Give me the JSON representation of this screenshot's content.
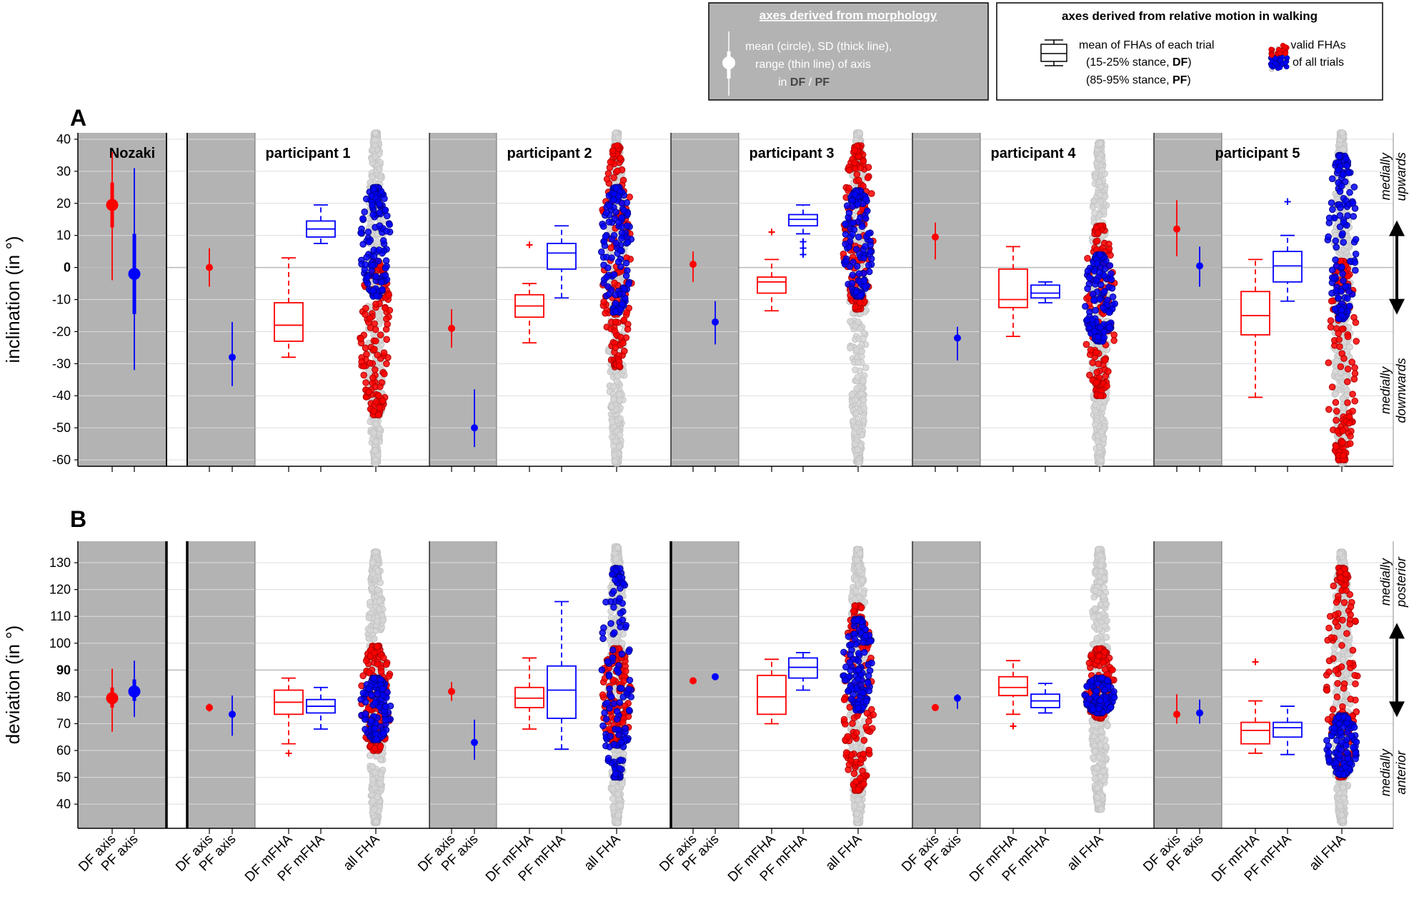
{
  "figure": {
    "colors": {
      "df": "#ff0000",
      "pf": "#0000ff",
      "gray_band": "#b3b3b3",
      "cloud": "#d6d6d6",
      "cloud_edge": "#c4c4c4"
    },
    "legend": {
      "morph_title": "axes derived from morphology",
      "morph_lines": [
        "mean (circle), SD (thick line),",
        "range (thin line) of axis"
      ],
      "morph_in": "in",
      "morph_df": "DF",
      "morph_slash": "/",
      "morph_pf": "PF",
      "motion_title": "axes derived from relative motion in walking",
      "motion_line1": "mean of FHAs of each trial",
      "motion_line2_pre": "(15-25% stance,",
      "motion_line2_bold": "DF",
      "motion_line3_pre": "(85-95% stance,",
      "motion_line3_bold": "PF",
      "close_paren": ")",
      "valid_line1": "valid FHAs",
      "valid_line2": "of all trials"
    },
    "x_tick_labels": [
      "DF axis",
      "PF axis",
      "DF axis",
      "PF axis",
      "DF mFHA",
      "PF mFHA",
      "all FHA",
      "DF axis",
      "PF axis",
      "DF mFHA",
      "PF mFHA",
      "all FHA",
      "DF axis",
      "PF axis",
      "DF mFHA",
      "PF mFHA",
      "all FHA",
      "DF axis",
      "PF axis",
      "DF mFHA",
      "PF mFHA",
      "all FHA",
      "DF axis",
      "PF axis",
      "DF mFHA",
      "PF mFHA",
      "all FHA"
    ]
  },
  "chart_data": [
    {
      "panel": "A",
      "type": "box-and-scatter",
      "ylabel": "inclination (in °)",
      "ylim": [
        -62,
        42
      ],
      "yticks": [
        -60,
        -50,
        -40,
        -30,
        -20,
        -10,
        0,
        10,
        20,
        30,
        40
      ],
      "annotation_top": [
        "medially",
        "upwards"
      ],
      "annotation_bottom": [
        "medially",
        "downwards"
      ],
      "groups": [
        {
          "name": "Nozaki",
          "axes": [
            {
              "label": "DF axis",
              "mean": 19.5,
              "sd": [
                12.5,
                26.5
              ],
              "range": [
                -4,
                36
              ]
            },
            {
              "label": "PF axis",
              "mean": -2,
              "sd": [
                -14.5,
                10.5
              ],
              "range": [
                -32,
                31
              ]
            }
          ]
        },
        {
          "name": "participant 1",
          "axes": [
            {
              "label": "DF axis",
              "mean": 0,
              "range": [
                -6,
                6
              ]
            },
            {
              "label": "PF axis",
              "mean": -28,
              "range": [
                -37,
                -17
              ]
            }
          ],
          "df_mfha": {
            "whisker": [
              -28,
              3
            ],
            "q1": -23,
            "median": -18,
            "q3": -11,
            "outliers": []
          },
          "pf_mfha": {
            "whisker": [
              7.5,
              19.5
            ],
            "q1": 9.5,
            "median": 12,
            "q3": 14.5,
            "outliers": []
          },
          "all_fha": {
            "range": [
              -61,
              42
            ],
            "df": [
              -46,
              2
            ],
            "pf": [
              -9,
              25
            ]
          }
        },
        {
          "name": "participant 2",
          "axes": [
            {
              "label": "DF axis",
              "mean": -19,
              "range": [
                -25,
                -13
              ]
            },
            {
              "label": "PF axis",
              "mean": -50,
              "range": [
                -56,
                -38
              ]
            }
          ],
          "df_mfha": {
            "whisker": [
              -23.5,
              -5
            ],
            "q1": -15.5,
            "median": -12,
            "q3": -8.5,
            "outliers": [
              7
            ]
          },
          "pf_mfha": {
            "whisker": [
              -9.5,
              13
            ],
            "q1": -0.5,
            "median": 4.5,
            "q3": 7.5,
            "outliers": []
          },
          "all_fha": {
            "range": [
              -61,
              42
            ],
            "df": [
              -31,
              38
            ],
            "pf": [
              -14,
              25
            ]
          }
        },
        {
          "name": "participant 3",
          "axes": [
            {
              "label": "DF axis",
              "mean": 1,
              "range": [
                -4.5,
                5
              ]
            },
            {
              "label": "PF axis",
              "mean": -17,
              "range": [
                -24,
                -10.5
              ]
            }
          ],
          "df_mfha": {
            "whisker": [
              -13.5,
              2.5
            ],
            "q1": -8,
            "median": -4.5,
            "q3": -3,
            "outliers": [
              11
            ]
          },
          "pf_mfha": {
            "whisker": [
              10.5,
              19.5
            ],
            "q1": 13,
            "median": 15,
            "q3": 16.5,
            "outliers": [
              8,
              6,
              4
            ]
          },
          "all_fha": {
            "range": [
              -61,
              42
            ],
            "df": [
              -13,
              38
            ],
            "pf": [
              -9,
              24
            ]
          }
        },
        {
          "name": "participant 4",
          "axes": [
            {
              "label": "DF axis",
              "mean": 9.5,
              "range": [
                2.5,
                14
              ]
            },
            {
              "label": "PF axis",
              "mean": -22,
              "range": [
                -29,
                -18.5
              ]
            }
          ],
          "df_mfha": {
            "whisker": [
              -21.5,
              6.5
            ],
            "q1": -12.5,
            "median": -10,
            "q3": -0.5,
            "outliers": []
          },
          "pf_mfha": {
            "whisker": [
              -11,
              -4.5
            ],
            "q1": -9.5,
            "median": -8,
            "q3": -5.5,
            "outliers": []
          },
          "all_fha": {
            "range": [
              -61,
              39
            ],
            "df": [
              -40,
              13
            ],
            "pf": [
              -23,
              4
            ]
          }
        },
        {
          "name": "participant 5",
          "axes": [
            {
              "label": "DF axis",
              "mean": 12,
              "range": [
                3.5,
                21
              ]
            },
            {
              "label": "PF axis",
              "mean": 0.5,
              "range": [
                -6,
                6.5
              ]
            }
          ],
          "df_mfha": {
            "whisker": [
              -40.5,
              2.5
            ],
            "q1": -21,
            "median": -15,
            "q3": -7.5,
            "outliers": []
          },
          "pf_mfha": {
            "whisker": [
              -10.5,
              10
            ],
            "q1": -4.5,
            "median": 0.5,
            "q3": 5,
            "outliers": [
              20.5
            ]
          },
          "all_fha": {
            "range": [
              -61,
              42
            ],
            "df": [
              -60,
              2
            ],
            "pf": [
              -16,
              35
            ]
          }
        }
      ]
    },
    {
      "panel": "B",
      "type": "box-and-scatter",
      "ylabel": "deviation (in °)",
      "ylim": [
        31,
        138
      ],
      "yticks": [
        40,
        50,
        60,
        70,
        80,
        90,
        100,
        110,
        120,
        130
      ],
      "annotation_top": [
        "medially",
        "posterior"
      ],
      "annotation_bottom": [
        "medially",
        "anterior"
      ],
      "groups": [
        {
          "name": "Nozaki",
          "axes": [
            {
              "label": "DF axis",
              "mean": 79.5,
              "sd": [
                76,
                83.5
              ],
              "range": [
                67,
                90.5
              ]
            },
            {
              "label": "PF axis",
              "mean": 82,
              "sd": [
                78.5,
                86.5
              ],
              "range": [
                72.5,
                93.5
              ]
            }
          ]
        },
        {
          "name": "participant 1",
          "axes": [
            {
              "label": "DF axis",
              "mean": 76,
              "range": [
                74.5,
                77.5
              ]
            },
            {
              "label": "PF axis",
              "mean": 73.5,
              "range": [
                65.5,
                80.5
              ]
            }
          ],
          "df_mfha": {
            "whisker": [
              62.5,
              87
            ],
            "q1": 73.5,
            "median": 78,
            "q3": 82.5,
            "outliers": [
              59
            ]
          },
          "pf_mfha": {
            "whisker": [
              68,
              83.5
            ],
            "q1": 74,
            "median": 76.5,
            "q3": 79,
            "outliers": []
          },
          "all_fha": {
            "range": [
              33,
              134
            ],
            "df": [
              60,
              99
            ],
            "pf": [
              64,
              87
            ]
          }
        },
        {
          "name": "participant 2",
          "axes": [
            {
              "label": "DF axis",
              "mean": 82,
              "range": [
                78.5,
                85.5
              ]
            },
            {
              "label": "PF axis",
              "mean": 63,
              "range": [
                56.5,
                71.5
              ]
            }
          ],
          "df_mfha": {
            "whisker": [
              68,
              94.5
            ],
            "q1": 76,
            "median": 79.5,
            "q3": 83.5,
            "outliers": []
          },
          "pf_mfha": {
            "whisker": [
              60.5,
              115.5
            ],
            "q1": 72,
            "median": 82.5,
            "q3": 91.5,
            "outliers": []
          },
          "all_fha": {
            "range": [
              33,
              136
            ],
            "df": [
              62,
              98
            ],
            "pf": [
              50,
              128
            ]
          }
        },
        {
          "name": "participant 3",
          "axes": [
            {
              "label": "DF axis",
              "mean": 86,
              "range": [
                85.5,
                86.5
              ]
            },
            {
              "label": "PF axis",
              "mean": 87.5,
              "range": [
                87,
                88.5
              ]
            }
          ],
          "df_mfha": {
            "whisker": [
              70,
              94
            ],
            "q1": 73.5,
            "median": 80,
            "q3": 88,
            "outliers": []
          },
          "pf_mfha": {
            "whisker": [
              82.5,
              96.5
            ],
            "q1": 87,
            "median": 91,
            "q3": 94.5,
            "outliers": []
          },
          "all_fha": {
            "range": [
              33,
              135
            ],
            "df": [
              45,
              114
            ],
            "pf": [
              75,
              109
            ]
          }
        },
        {
          "name": "participant 4",
          "axes": [
            {
              "label": "DF axis",
              "mean": 76,
              "range": [
                75.5,
                76.5
              ]
            },
            {
              "label": "PF axis",
              "mean": 79.5,
              "range": [
                75.5,
                81
              ]
            }
          ],
          "df_mfha": {
            "whisker": [
              73.5,
              93.5
            ],
            "q1": 80.5,
            "median": 83.5,
            "q3": 87.5,
            "outliers": [
              69
            ]
          },
          "pf_mfha": {
            "whisker": [
              74,
              85
            ],
            "q1": 76,
            "median": 78.5,
            "q3": 81,
            "outliers": []
          },
          "all_fha": {
            "range": [
              38,
              135
            ],
            "df": [
              72,
              98
            ],
            "pf": [
              74,
              87
            ]
          }
        },
        {
          "name": "participant 5",
          "axes": [
            {
              "label": "DF axis",
              "mean": 73.5,
              "range": [
                70,
                81
              ]
            },
            {
              "label": "PF axis",
              "mean": 74,
              "range": [
                70,
                79
              ]
            }
          ],
          "df_mfha": {
            "whisker": [
              59,
              78.5
            ],
            "q1": 62.5,
            "median": 67.5,
            "q3": 70.5,
            "outliers": [
              93
            ]
          },
          "pf_mfha": {
            "whisker": [
              58.5,
              76.5
            ],
            "q1": 65,
            "median": 68.5,
            "q3": 70.5,
            "outliers": []
          },
          "all_fha": {
            "range": [
              33,
              134
            ],
            "df": [
              50,
              128
            ],
            "pf": [
              51,
              73
            ]
          }
        }
      ]
    }
  ]
}
